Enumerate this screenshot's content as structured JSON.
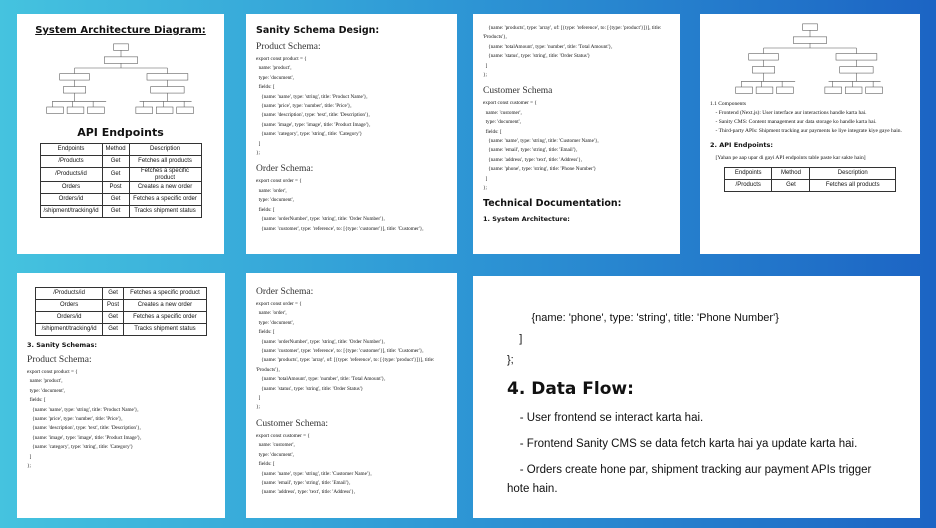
{
  "panels": [
    {
      "blocks": [
        {
          "title": "System Architecture Diagram:"
        },
        {
          "heading": "API Endpoints"
        },
        {
          "table": {
            "columns": [
              "Endpoints",
              "Method",
              "Description"
            ],
            "rows": [
              [
                "/Products",
                "Get",
                "Fetches all products"
              ],
              [
                "/Products/id",
                "Get",
                "Fetches a specific product"
              ],
              [
                "Orders",
                "Post",
                "Creates a new order"
              ],
              [
                "Orders/id",
                "Get",
                "Fetches a specific order"
              ],
              [
                "/shipment/tracking/id",
                "Get",
                "Tracks shipment status"
              ]
            ]
          }
        }
      ]
    },
    {
      "blocks": [
        {
          "title": "Sanity Schema Design:"
        },
        {
          "subheading": "Product Schema:"
        },
        {
          "code": [
            "export const product = {",
            "  name: 'product',",
            "  type: 'document',",
            "  fields: [",
            "    {name: 'name', type: 'string', title: 'Product Name'},",
            "    {name: 'price', type: 'number', title: 'Price'},",
            "    {name: 'description', type: 'text', title: 'Description'},",
            "    {name: 'image', type: 'image', title: 'Product Image'},",
            "    {name: 'category', type: 'string', title: 'Category'}",
            "  ]",
            "};"
          ]
        },
        {
          "subheading": "Order Schema:"
        },
        {
          "code": [
            "export const order = {",
            "  name: 'order',",
            "  type: 'document',",
            "  fields: [",
            "    {name: 'orderNumber', type: 'string', title: 'Order Number'},",
            "    {name: 'customer', type: 'reference', to: [{type: 'customer'}], title: 'Customer'},"
          ]
        }
      ]
    },
    {
      "blocks": [
        {
          "code": [
            "    {name: 'products', type: 'array', of: [{type: 'reference', to: [{type: 'product'}]}], title: 'Products'},",
            "    {name: 'totalAmount', type: 'number', title: 'Total Amount'},",
            "    {name: 'status', type: 'string', title: 'Order Status'}",
            "  ]",
            "};"
          ]
        },
        {
          "subheading": "Customer Schema"
        },
        {
          "code": [
            "export const customer = {",
            "  name: 'customer',",
            "  type: 'document',",
            "  fields: [",
            "    {name: 'name', type: 'string', title: 'Customer Name'},",
            "    {name: 'email', type: 'string', title: 'Email'},",
            "    {name: 'address', type: 'text', title: 'Address'},",
            "    {name: 'phone', type: 'string', title: 'Phone Number'}",
            "  ]",
            "};"
          ]
        },
        {
          "title": "Technical Documentation:"
        },
        {
          "heading": "1. System Architecture:"
        }
      ]
    },
    {
      "blocks": [
        {
          "text": [
            "1.1 Components",
            "    - Frontend (Next.js): User interface aur interactions handle karta hai.",
            "    - Sanity CMS: Content management aur data storage ko handle karta hai.",
            "    - Third-party APIs: Shipment tracking aur payments ke liye integrate kiye gaye hain."
          ]
        },
        {
          "heading": "2. API Endpoints:"
        },
        {
          "text": [
            "    [Yahan pe aap upar di gayi API endpoints table paste kar sakte hain]"
          ]
        },
        {
          "table": {
            "columns": [
              "Endpoints",
              "Method",
              "Description"
            ],
            "rows": [
              [
                "/Products",
                "Get",
                "Fetches all products"
              ]
            ]
          }
        }
      ]
    },
    {
      "blocks": [
        {
          "table": {
            "rows": [
              [
                "/Products/id",
                "Get",
                "Fetches a specific product"
              ],
              [
                "Orders",
                "Post",
                "Creates a new order"
              ],
              [
                "Orders/id",
                "Get",
                "Fetches a specific order"
              ],
              [
                "/shipment/tracking/id",
                "Get",
                "Tracks shipment status"
              ]
            ]
          }
        },
        {
          "heading": "3. Sanity Schemas:"
        },
        {
          "subheading": "Product Schema:"
        },
        {
          "code": [
            "export const product = {",
            "  name: 'product',",
            "  type: 'document',",
            "  fields: [",
            "    {name: 'name', type: 'string', title: 'Product Name'},",
            "    {name: 'price', type: 'number', title: 'Price'},",
            "    {name: 'description', type: 'text', title: 'Description'},",
            "    {name: 'image', type: 'image', title: 'Product Image'},",
            "    {name: 'category', type: 'string', title: 'Category'}",
            "  ]",
            "};"
          ]
        }
      ]
    },
    {
      "blocks": [
        {
          "subheading": "Order Schema:"
        },
        {
          "code": [
            "export const order = {",
            "  name: 'order',",
            "  type: 'document',",
            "  fields: [",
            "    {name: 'orderNumber', type: 'string', title: 'Order Number'},",
            "    {name: 'customer', type: 'reference', to: [{type: 'customer'}], title: 'Customer'},",
            "    {name: 'products', type: 'array', of: [{type: 'reference', to: [{type: 'product'}]}], title: 'Products'},",
            "    {name: 'totalAmount', type: 'number', title: 'Total Amount'},",
            "    {name: 'status', type: 'string', title: 'Order Status'}",
            "  ]",
            "};"
          ]
        },
        {
          "subheading": "Customer Schema:"
        },
        {
          "code": [
            "export const customer = {",
            "  name: 'customer',",
            "  type: 'document',",
            "  fields: [",
            "    {name: 'name', type: 'string', title: 'Customer Name'},",
            "    {name: 'email', type: 'string', title: 'Email'},",
            "    {name: 'address', type: 'text', title: 'Address'},"
          ]
        }
      ]
    },
    {
      "blocks": [
        {
          "code": [
            "        {name: 'phone', type: 'string', title: 'Phone Number'}",
            "    ]",
            "};"
          ]
        },
        {
          "title": "4. Data Flow:"
        },
        {
          "text": [
            "    - User frontend se interact karta hai.",
            "    - Frontend Sanity CMS se data fetch karta hai ya update karta hai.",
            "    - Orders create hone par, shipment tracking aur payment APIs trigger hote hain."
          ]
        }
      ]
    }
  ]
}
